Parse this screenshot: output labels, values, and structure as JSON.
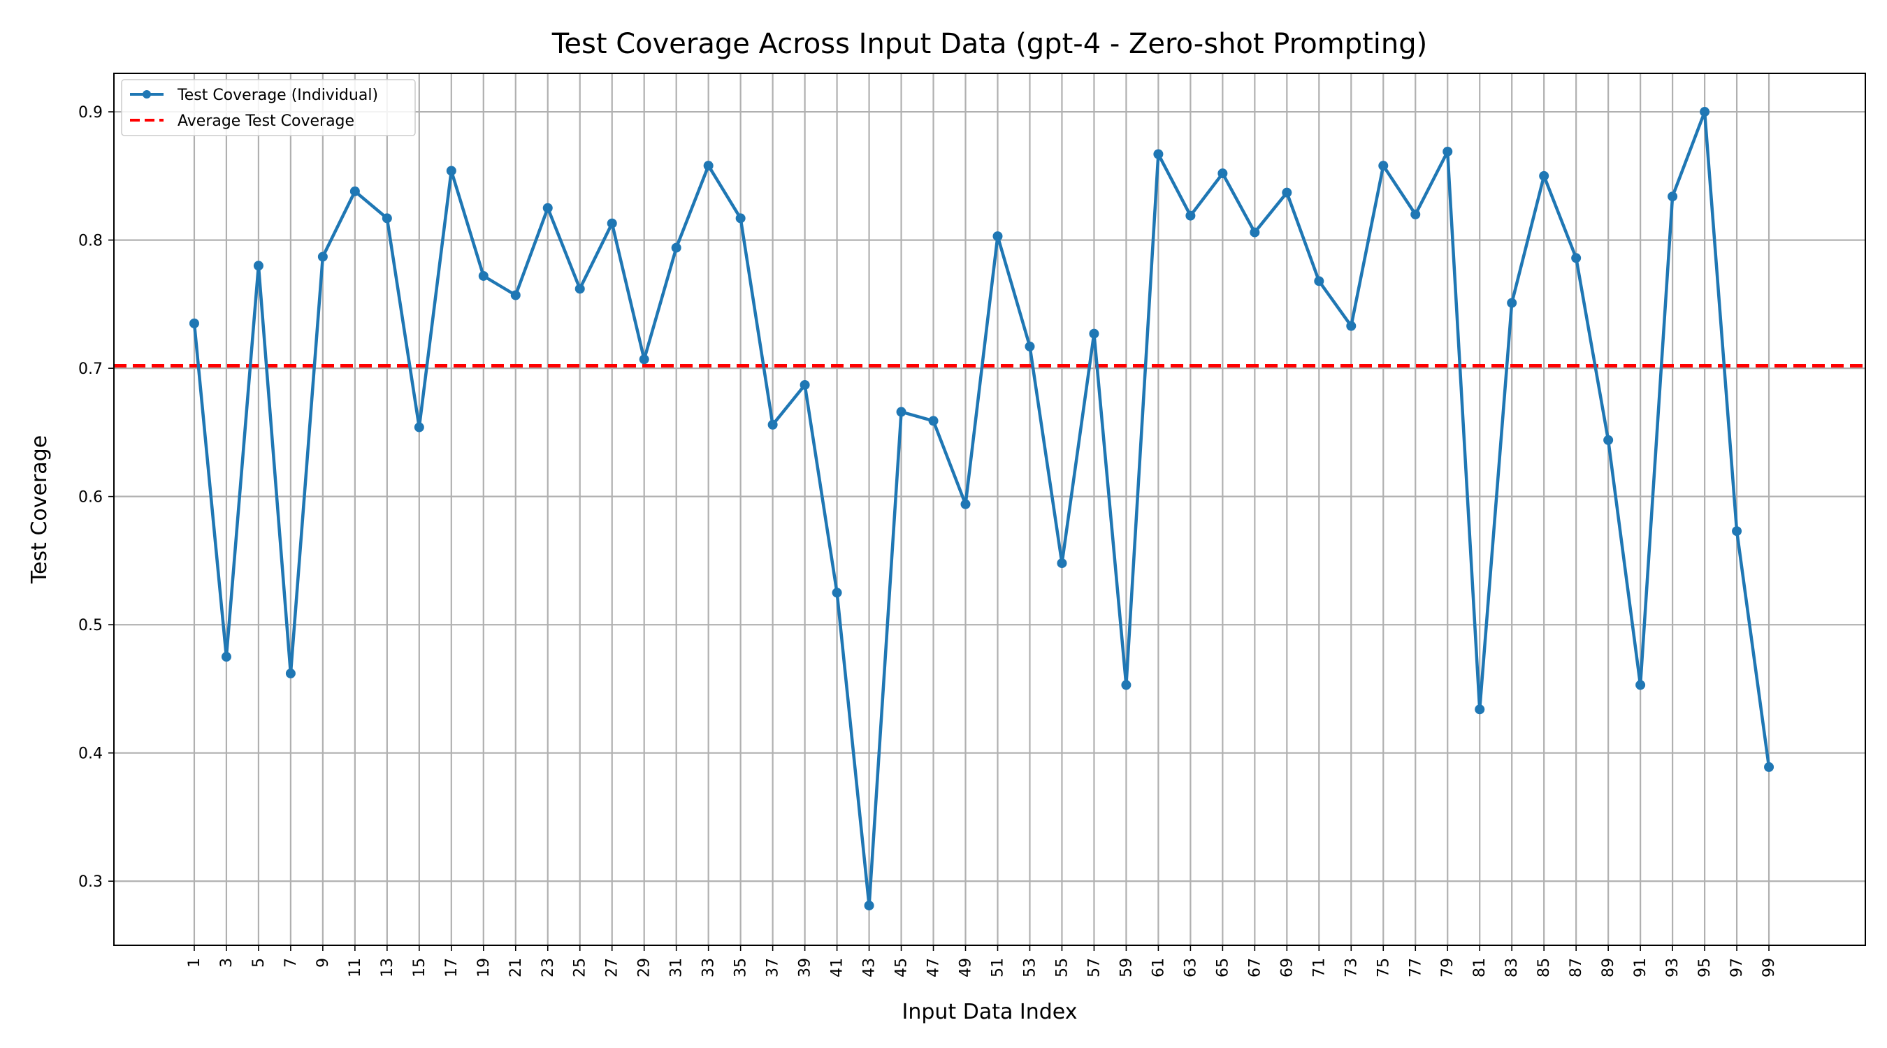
{
  "chart_data": {
    "type": "line",
    "title": "Test Coverage Across Input Data (gpt-4 - Zero-shot Prompting)",
    "xlabel": "Input Data Index",
    "ylabel": "Test Coverage",
    "x": [
      1,
      3,
      5,
      7,
      9,
      11,
      13,
      15,
      17,
      19,
      21,
      23,
      25,
      27,
      29,
      31,
      33,
      35,
      37,
      39,
      41,
      43,
      45,
      47,
      49,
      51,
      53,
      55,
      57,
      59,
      61,
      63,
      65,
      67,
      69,
      71,
      73,
      75,
      77,
      79,
      81,
      83,
      85,
      87,
      89,
      91,
      93,
      95,
      97,
      99
    ],
    "xlim": [
      -4,
      105
    ],
    "ylim": [
      0.25,
      0.93
    ],
    "yticks": [
      0.3,
      0.4,
      0.5,
      0.6,
      0.7,
      0.8,
      0.9
    ],
    "ytick_labels": [
      "0.3",
      "0.4",
      "0.5",
      "0.6",
      "0.7",
      "0.8",
      "0.9"
    ],
    "grid": true,
    "legend_position": "top-left",
    "series": [
      {
        "name": "Test Coverage (Individual)",
        "color": "#1f77b4",
        "style": "solid-with-markers",
        "values": [
          0.735,
          0.475,
          0.78,
          0.462,
          0.787,
          0.838,
          0.817,
          0.654,
          0.854,
          0.772,
          0.757,
          0.825,
          0.762,
          0.813,
          0.707,
          0.794,
          0.858,
          0.817,
          0.656,
          0.687,
          0.525,
          0.281,
          0.666,
          0.659,
          0.594,
          0.803,
          0.717,
          0.548,
          0.727,
          0.453,
          0.867,
          0.819,
          0.852,
          0.806,
          0.837,
          0.768,
          0.733,
          0.858,
          0.82,
          0.869,
          0.434,
          0.751,
          0.85,
          0.786,
          0.644,
          0.453,
          0.834,
          0.9,
          0.573,
          0.389
        ]
      },
      {
        "name": "Average Test Coverage",
        "color": "#ff0000",
        "style": "dashed",
        "value": 0.702
      }
    ]
  }
}
